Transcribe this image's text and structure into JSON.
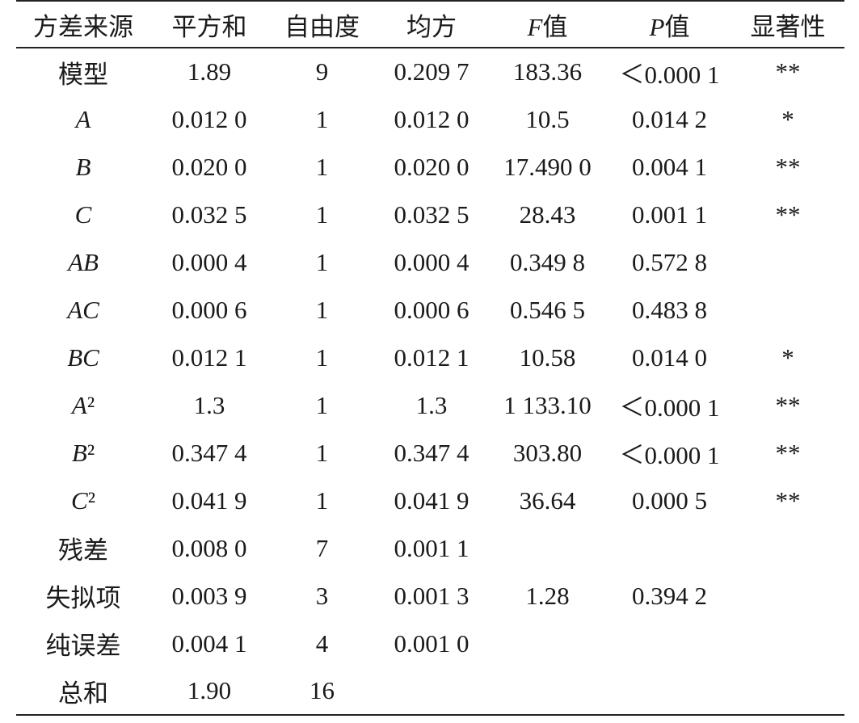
{
  "table": {
    "header": [
      "方差来源",
      "平方和",
      "自由度",
      "均方",
      "F值",
      "P值",
      "显著性"
    ],
    "rows": [
      [
        "模型",
        "1.89",
        "9",
        "0.209 7",
        "183.36",
        "＜0.000 1",
        "**"
      ],
      [
        "A",
        "0.012 0",
        "1",
        "0.012 0",
        "10.5",
        "0.014 2",
        "*"
      ],
      [
        "B",
        "0.020 0",
        "1",
        "0.020 0",
        "17.490 0",
        "0.004 1",
        "**"
      ],
      [
        "C",
        "0.032 5",
        "1",
        "0.032 5",
        "28.43",
        "0.001 1",
        "**"
      ],
      [
        "AB",
        "0.000 4",
        "1",
        "0.000 4",
        "0.349 8",
        "0.572 8",
        null
      ],
      [
        "AC",
        "0.000 6",
        "1",
        "0.000 6",
        "0.546 5",
        "0.483 8",
        null
      ],
      [
        "BC",
        "0.012 1",
        "1",
        "0.012 1",
        "10.58",
        "0.014 0",
        "*"
      ],
      [
        "A²",
        "1.3",
        "1",
        "1.3",
        "1 133.10",
        "＜0.000 1",
        "**"
      ],
      [
        "B²",
        "0.347 4",
        "1",
        "0.347 4",
        "303.80",
        "＜0.000 1",
        "**"
      ],
      [
        "C²",
        "0.041 9",
        "1",
        "0.041 9",
        "36.64",
        "0.000 5",
        "**"
      ],
      [
        "残差",
        "0.008 0",
        "7",
        "0.001 1",
        null,
        null,
        null
      ],
      [
        "失拟项",
        "0.003 9",
        "3",
        "0.001 3",
        "1.28",
        "0.394 2",
        null
      ],
      [
        "纯误差",
        "0.004 1",
        "4",
        "0.001 0",
        null,
        null,
        null
      ],
      [
        "总和",
        "1.90",
        "16",
        null,
        null,
        null,
        null
      ]
    ]
  }
}
